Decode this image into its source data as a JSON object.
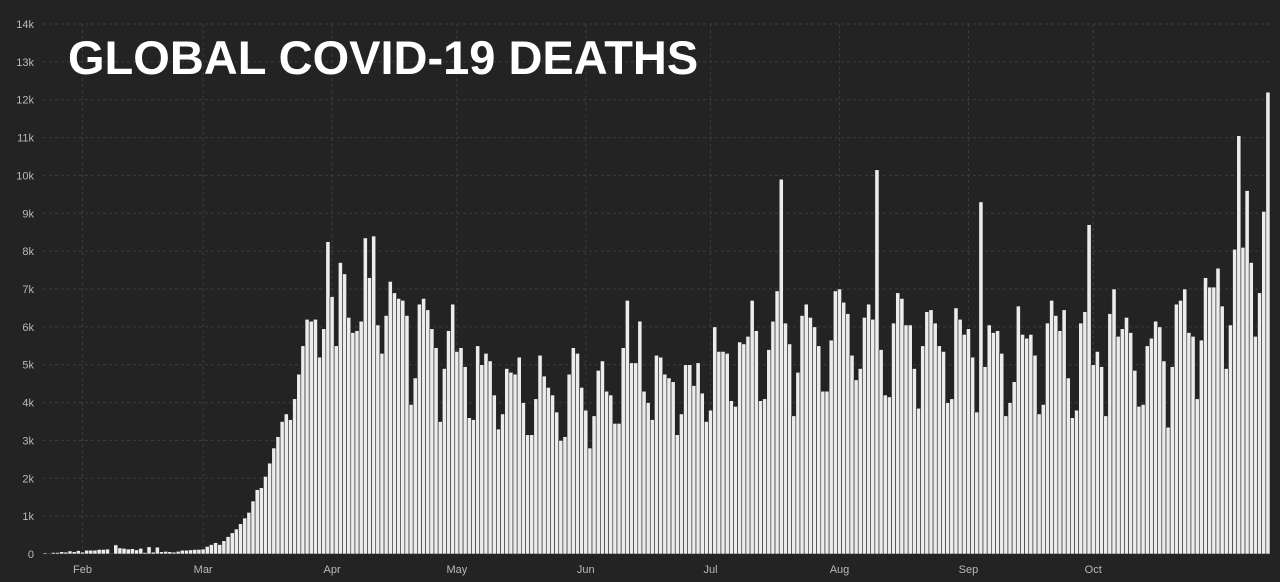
{
  "chart_data": {
    "type": "bar",
    "title": "GLOBAL COVID-19 DEATHS",
    "xlabel": "",
    "ylabel": "",
    "ylim": [
      0,
      14000
    ],
    "y_ticks": [
      {
        "value": 0,
        "label": "0"
      },
      {
        "value": 1000,
        "label": "1k"
      },
      {
        "value": 2000,
        "label": "2k"
      },
      {
        "value": 3000,
        "label": "3k"
      },
      {
        "value": 4000,
        "label": "4k"
      },
      {
        "value": 5000,
        "label": "5k"
      },
      {
        "value": 6000,
        "label": "6k"
      },
      {
        "value": 7000,
        "label": "7k"
      },
      {
        "value": 8000,
        "label": "8k"
      },
      {
        "value": 9000,
        "label": "9k"
      },
      {
        "value": 10000,
        "label": "10k"
      },
      {
        "value": 11000,
        "label": "11k"
      },
      {
        "value": 12000,
        "label": "12k"
      },
      {
        "value": 13000,
        "label": "13k"
      },
      {
        "value": 14000,
        "label": "14k"
      }
    ],
    "x_ticks": [
      {
        "label": "Feb",
        "day_index": 9
      },
      {
        "label": "Mar",
        "day_index": 38
      },
      {
        "label": "Apr",
        "day_index": 69
      },
      {
        "label": "May",
        "day_index": 99
      },
      {
        "label": "Jun",
        "day_index": 130
      },
      {
        "label": "Jul",
        "day_index": 160
      },
      {
        "label": "Aug",
        "day_index": 191
      },
      {
        "label": "Sep",
        "day_index": 222
      },
      {
        "label": "Oct",
        "day_index": 252
      }
    ],
    "grid": true,
    "values": [
      30,
      20,
      40,
      40,
      60,
      50,
      80,
      60,
      90,
      50,
      100,
      100,
      100,
      120,
      120,
      130,
      20,
      240,
      160,
      150,
      130,
      140,
      110,
      150,
      40,
      190,
      50,
      180,
      60,
      70,
      60,
      50,
      70,
      100,
      100,
      110,
      120,
      120,
      130,
      200,
      250,
      300,
      250,
      350,
      460,
      560,
      660,
      800,
      950,
      1100,
      1400,
      1700,
      1750,
      2050,
      2400,
      2800,
      3100,
      3500,
      3700,
      3550,
      4100,
      4750,
      5500,
      6200,
      6150,
      6200,
      5200,
      5950,
      8250,
      6800,
      5500,
      7700,
      7400,
      6250,
      5850,
      5900,
      6150,
      8350,
      7300,
      8400,
      6050,
      5300,
      6300,
      7200,
      6900,
      6750,
      6700,
      6300,
      3950,
      4650,
      6600,
      6750,
      6450,
      5950,
      5450,
      3500,
      4900,
      5900,
      6600,
      5350,
      5450,
      4950,
      3600,
      3550,
      5500,
      5000,
      5300,
      5100,
      4200,
      3300,
      3700,
      4900,
      4800,
      4750,
      5200,
      4000,
      3150,
      3150,
      4100,
      5250,
      4700,
      4400,
      4200,
      3750,
      3000,
      3100,
      4750,
      5450,
      5300,
      4400,
      3800,
      2800,
      3650,
      4850,
      5100,
      4300,
      4200,
      3450,
      3450,
      5450,
      6700,
      5050,
      5050,
      6150,
      4300,
      4000,
      3550,
      5250,
      5200,
      4750,
      4650,
      4550,
      3150,
      3700,
      5000,
      5000,
      4450,
      5050,
      4250,
      3500,
      3800,
      6000,
      5350,
      5350,
      5300,
      4050,
      3900,
      5600,
      5550,
      5750,
      6700,
      5900,
      4050,
      4100,
      5400,
      6150,
      6950,
      9900,
      6100,
      5550,
      3650,
      4800,
      6300,
      6600,
      6250,
      6000,
      5500,
      4300,
      4300,
      5650,
      6950,
      7000,
      6650,
      6350,
      5250,
      4600,
      4900,
      6250,
      6600,
      6200,
      10150,
      5400,
      4200,
      4150,
      6100,
      6900,
      6750,
      6050,
      6050,
      4900,
      3850,
      5500,
      6400,
      6450,
      6100,
      5500,
      5350,
      4000,
      4100,
      6500,
      6200,
      5800,
      5950,
      5200,
      3750,
      9300,
      4950,
      6050,
      5850,
      5900,
      5300,
      3650,
      4000,
      4550,
      6550,
      5800,
      5700,
      5800,
      5250,
      3700,
      3950,
      6100,
      6700,
      6300,
      5900,
      6450,
      4650,
      3600,
      3800,
      6100,
      6400,
      8700,
      5000,
      5350,
      4950,
      3650,
      6350,
      7000,
      5750,
      5950,
      6250,
      5850,
      4850,
      3900,
      3950,
      5500,
      5700,
      6150,
      6000,
      5100,
      3350,
      4950,
      6600,
      6700,
      7000,
      5850,
      5750,
      4100,
      5650,
      7300,
      7050,
      7050,
      7550,
      6550,
      4900,
      6050,
      8050,
      11050,
      8100,
      9600,
      7700,
      5750,
      6900,
      9050,
      12200
    ]
  }
}
